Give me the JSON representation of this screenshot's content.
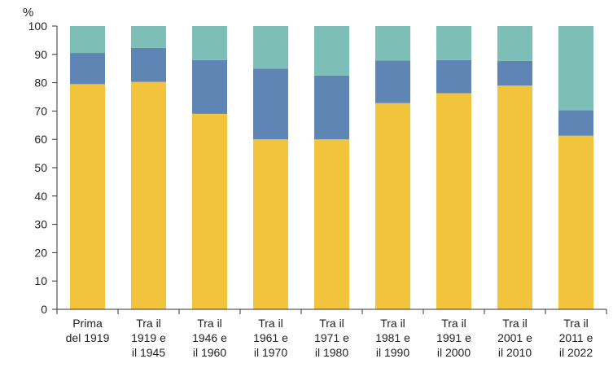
{
  "chart_data": {
    "type": "bar",
    "stacked": true,
    "ylabel": "%",
    "ylim": [
      0,
      100
    ],
    "yticks": [
      0,
      10,
      20,
      30,
      40,
      50,
      60,
      70,
      80,
      90,
      100
    ],
    "grid": false,
    "categories": [
      [
        "Prima",
        "del 1919"
      ],
      [
        "Tra il",
        "1919 e",
        "il 1945"
      ],
      [
        "Tra il",
        "1946 e",
        "il 1960"
      ],
      [
        "Tra il",
        "1961 e",
        "il 1970"
      ],
      [
        "Tra il",
        "1971 e",
        "il 1980"
      ],
      [
        "Tra il",
        "1981 e",
        "il 1990"
      ],
      [
        "Tra il",
        "1991 e",
        "il 2000"
      ],
      [
        "Tra il",
        "2001 e",
        "il 2010"
      ],
      [
        "Tra il",
        "2011 e",
        "il 2022"
      ]
    ],
    "series": [
      {
        "color": "#f2c43d",
        "values": [
          79.5,
          80.3,
          69,
          60,
          60,
          72.8,
          76.3,
          79,
          61.3
        ]
      },
      {
        "color": "#5e85b3",
        "values": [
          11,
          12,
          19,
          25,
          22.5,
          15,
          11.7,
          8.7,
          9
        ]
      },
      {
        "color": "#7dbfb6",
        "values": [
          9.5,
          7.7,
          12,
          15,
          17.5,
          12.2,
          12,
          12.3,
          29.7
        ]
      }
    ]
  }
}
